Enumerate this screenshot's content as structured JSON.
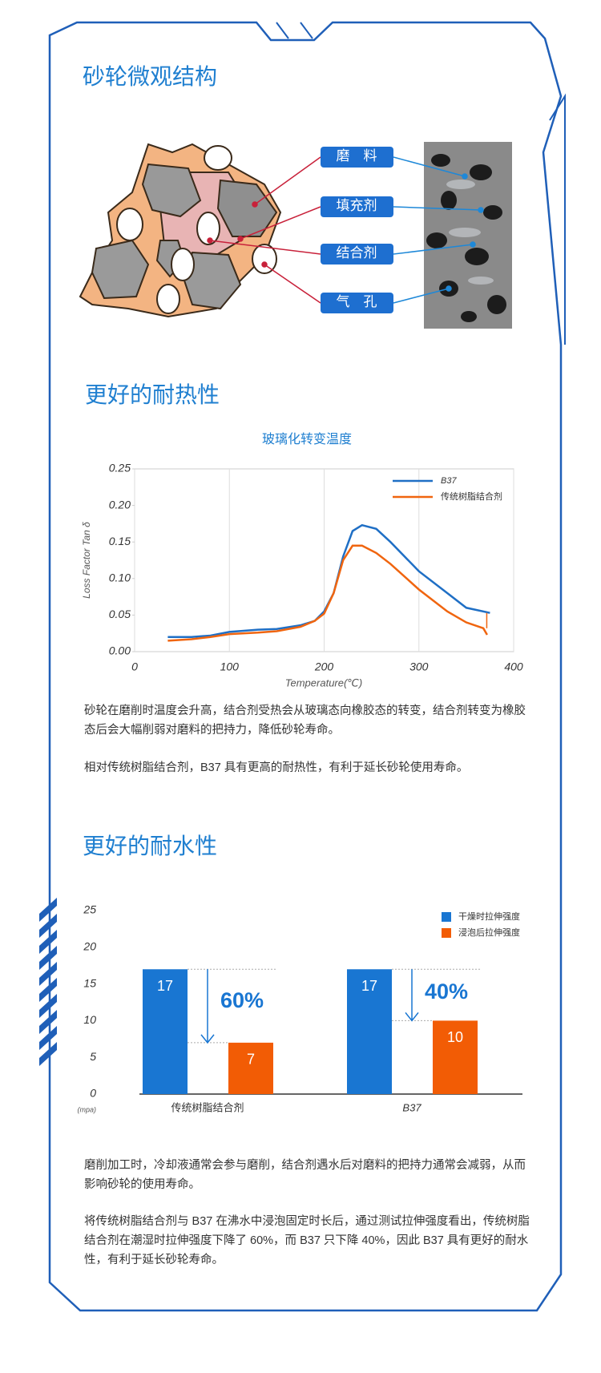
{
  "sections": [
    {
      "title": "砂轮微观结构",
      "labels": [
        "磨　料",
        "填充剂",
        "结合剂",
        "气　孔"
      ]
    },
    {
      "title": "更好的耐热性",
      "paragraphs": [
        "砂轮在磨削时温度会升高，结合剂受热会从玻璃态向橡胶态的转变，结合剂转变为橡胶态后会大幅削弱对磨料的把持力，降低砂轮寿命。",
        "相对传统树脂结合剂，B37 具有更高的耐热性，有利于延长砂轮使用寿命。"
      ]
    },
    {
      "title": "更好的耐水性",
      "paragraphs": [
        "磨削加工时，冷却液通常会参与磨削，结合剂遇水后对磨料的把持力通常会减弱，从而影响砂轮的使用寿命。",
        "将传统树脂结合剂与 B37 在沸水中浸泡固定时长后，通过测试拉伸强度看出，传统树脂结合剂在潮湿时拉伸强度下降了 60%，而 B37 只下降 40%，因此 B37 具有更好的耐水性，有利于延长砂轮寿命。"
      ]
    }
  ],
  "chart_data": [
    {
      "type": "line",
      "title": "玻璃化转变温度",
      "x_label": "Temperature(℃)",
      "y_label": "Loss Factor Tan δ",
      "xlim": [
        0,
        400
      ],
      "xticks": [
        0,
        100,
        200,
        300,
        400
      ],
      "ylim": [
        0,
        0.25
      ],
      "yticks": [
        {
          "value": 0,
          "label": "0.00"
        },
        {
          "value": 0.05,
          "label": "0.05"
        },
        {
          "value": 0.1,
          "label": "0.10"
        },
        {
          "value": 0.15,
          "label": "0.15"
        },
        {
          "value": 0.2,
          "label": "0.20"
        },
        {
          "value": 0.25,
          "label": "0.25"
        }
      ],
      "grid": "x",
      "legend": "upper right",
      "series": [
        {
          "name": "B37",
          "color": "#1f6fc5",
          "x": [
            35,
            60,
            80,
            100,
            130,
            150,
            175,
            190,
            200,
            210,
            220,
            230,
            240,
            255,
            270,
            300,
            330,
            350,
            375
          ],
          "values": [
            0.02,
            0.02,
            0.022,
            0.027,
            0.03,
            0.031,
            0.036,
            0.042,
            0.055,
            0.08,
            0.13,
            0.165,
            0.173,
            0.168,
            0.15,
            0.11,
            0.08,
            0.06,
            0.053
          ]
        },
        {
          "name": "传统树脂结合剂",
          "color": "#f0650f",
          "x": [
            35,
            60,
            80,
            100,
            130,
            150,
            175,
            190,
            200,
            210,
            220,
            230,
            240,
            255,
            270,
            300,
            330,
            350,
            368,
            372
          ],
          "values": [
            0.015,
            0.017,
            0.02,
            0.024,
            0.026,
            0.028,
            0.034,
            0.042,
            0.052,
            0.08,
            0.125,
            0.145,
            0.145,
            0.135,
            0.12,
            0.085,
            0.055,
            0.04,
            0.032,
            0.023
          ]
        }
      ]
    },
    {
      "type": "bar",
      "unit": "(mpa)",
      "categories": [
        "传统树脂结合剂",
        "B37"
      ],
      "ylim": [
        0,
        25
      ],
      "yticks": [
        0,
        5,
        10,
        15,
        20,
        25
      ],
      "legend": "upper right",
      "series": [
        {
          "name": "干燥时拉伸强度",
          "color": "#1976d2",
          "values": [
            17,
            17
          ]
        },
        {
          "name": "浸泡后拉伸强度",
          "color": "#f25c05",
          "values": [
            7,
            10
          ]
        }
      ],
      "annotations": [
        "60%",
        "40%"
      ]
    }
  ]
}
